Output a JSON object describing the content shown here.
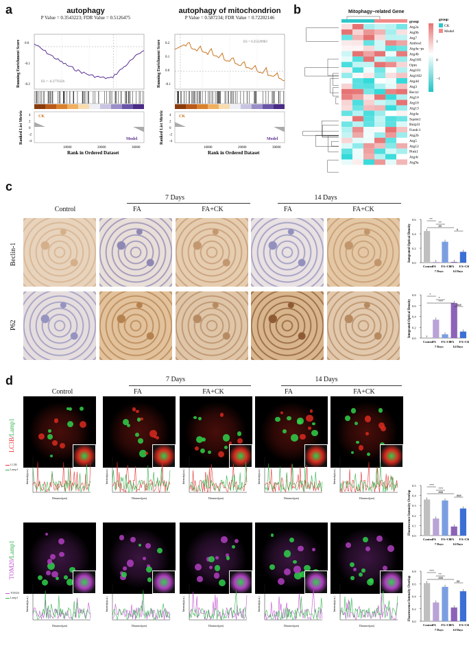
{
  "panels": {
    "a": "a",
    "b": "b",
    "c": "c",
    "d": "d"
  },
  "gsea": [
    {
      "title": "autophagy",
      "sub": "P Value = 0.3543223; FDR Value = 0.5126475",
      "es": "ES = -0.2776326",
      "color": "#5a2d91"
    },
    {
      "title": "autophagy of mitochondrion",
      "sub": "P Value = 0.587234; FDR Value = 0.72202146",
      "es": "ES = 0.25329983",
      "color": "#c8741e"
    }
  ],
  "gsea_axes": {
    "yl1": "Running Enrichment Score",
    "yl2": "Ranked List Metric",
    "xlabel": "Rank in Ordered Dataset",
    "ck": "CK",
    "model": "Model",
    "xticks": [
      "10000",
      "20000",
      "30000"
    ],
    "yticks_left": [
      "0.0",
      "-0.1",
      "-0.2"
    ],
    "yticks_left2": [
      "0.2",
      "0.1",
      "0.0",
      "-0.1"
    ],
    "rl_ticks": [
      "4",
      "2",
      "0",
      "-2",
      "-4"
    ]
  },
  "heatmap": {
    "title": "Mitophagy−related Gene",
    "group_label": "group",
    "legend_title": "group",
    "legend": [
      {
        "name": "CK",
        "color": "#2ec7c9"
      },
      {
        "name": "Model",
        "color": "#f08a8a"
      }
    ],
    "scale": [
      "1",
      "0",
      "−1"
    ],
    "genes": [
      "Atg2a",
      "Atg9b",
      "Atg7",
      "Ambra1",
      "Atg4a−ps",
      "Atg4b",
      "Atg16l1",
      "Optn",
      "Atg101",
      "Atg16l2",
      "Atg4d",
      "Atg3",
      "Becn1",
      "Atg14",
      "Atg10",
      "Atg13",
      "Atg4a",
      "Sqstm1",
      "Bnip3l",
      "Fundc1",
      "Atg2b",
      "Atg5",
      "Atg12",
      "Pink1",
      "Atg4c",
      "Atg9a"
    ]
  },
  "ihc": {
    "columns": [
      "Control",
      "FA",
      "FA+CK",
      "FA",
      "FA+CK"
    ],
    "groups": [
      "7 Days",
      "14 Days"
    ],
    "rows": [
      "Beclin-1",
      "P62"
    ]
  },
  "chart_data": [
    {
      "type": "bar",
      "ylabel": "Integrated Optical Density",
      "categories": [
        "Control",
        "FA",
        "FA+CK",
        "FA",
        "FA+CK"
      ],
      "group_labels": [
        "7 Days",
        "14 Days"
      ],
      "values": [
        0.44,
        0.01,
        0.29,
        0.01,
        0.15
      ],
      "ylim": [
        0,
        0.6
      ],
      "yticks": [
        "0.0",
        "0.2",
        "0.4",
        "0.6"
      ],
      "sig": [
        "**",
        "**",
        "##",
        "#"
      ],
      "colors": [
        "#bfbfbf",
        "#b9a3d6",
        "#7a9ee0",
        "#8c63b8",
        "#3b6fd6"
      ]
    },
    {
      "type": "bar",
      "ylabel": "Integrated Optical Density",
      "categories": [
        "Control",
        "FA",
        "FA+CK",
        "FA",
        "FA+CK"
      ],
      "group_labels": [
        "7 Days",
        "14 Days"
      ],
      "values": [
        0.01,
        0.34,
        0.07,
        0.65,
        0.12
      ],
      "ylim": [
        0,
        0.8
      ],
      "yticks": [
        "0.0",
        "0.2",
        "0.4",
        "0.6",
        "0.8"
      ],
      "sig": [
        "*",
        "*",
        "***",
        "###"
      ],
      "colors": [
        "#bfbfbf",
        "#b9a3d6",
        "#7a9ee0",
        "#8c63b8",
        "#3b6fd6"
      ]
    },
    {
      "type": "bar",
      "ylabel": "Fluorescence Intensity Overlap",
      "categories": [
        "Control",
        "FA",
        "FA+CK",
        "FA",
        "FA+CK"
      ],
      "group_labels": [
        "7 Days",
        "14 Days"
      ],
      "values": [
        0.36,
        0.17,
        0.35,
        0.09,
        0.27
      ],
      "ylim": [
        0,
        0.5
      ],
      "yticks": [
        "0.0",
        "0.1",
        "0.2",
        "0.3",
        "0.4",
        "0.5"
      ],
      "sig": [
        "***",
        "***",
        "###",
        "###"
      ],
      "colors": [
        "#bfbfbf",
        "#b9a3d6",
        "#7a9ee0",
        "#8c63b8",
        "#3b6fd6"
      ]
    },
    {
      "type": "bar",
      "ylabel": "Fluorescence Intensity Overlap",
      "categories": [
        "Control",
        "FA",
        "FA+CK",
        "FA",
        "FA+CK"
      ],
      "group_labels": [
        "7 Days",
        "14 Days"
      ],
      "values": [
        0.61,
        0.3,
        0.55,
        0.22,
        0.48
      ],
      "ylim": [
        0,
        0.8
      ],
      "yticks": [
        "0.0",
        "0.2",
        "0.4",
        "0.6",
        "0.8"
      ],
      "sig": [
        "***",
        "**",
        "###",
        "##"
      ],
      "colors": [
        "#bfbfbf",
        "#b9a3d6",
        "#7a9ee0",
        "#8c63b8",
        "#3b6fd6"
      ]
    }
  ],
  "fluor": {
    "columns": [
      "Control",
      "FA",
      "FA+CK",
      "FA",
      "FA+CK"
    ],
    "groups": [
      "7 Days",
      "14 Days"
    ],
    "row1": {
      "label1": "LC3B",
      "sep": "/",
      "label2": "Lamp1",
      "c1": "#e53030",
      "c2": "#2fb34a",
      "legend": [
        "LC3B",
        "Lamp1"
      ]
    },
    "row2": {
      "label1": "TOM20",
      "sep": "/",
      "label2": "Lamp1",
      "c1": "#c04fd0",
      "c2": "#2fb34a",
      "legend": [
        "TOM20",
        "Lamp1"
      ]
    },
    "xlab": "Distance(μm)",
    "ylab": "Intensity(a.u.)"
  }
}
